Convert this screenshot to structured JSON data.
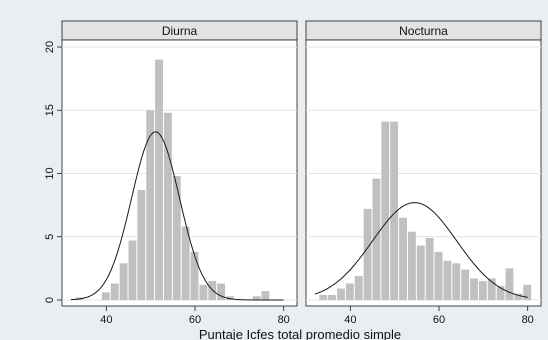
{
  "chart_data": {
    "type": "bar",
    "subtype": "histogram-with-normal-curve",
    "xlabel": "Puntaje Icfes total promedio simple",
    "ylabel": "",
    "xlim": [
      30,
      83
    ],
    "ylim": [
      0,
      21
    ],
    "xticks": [
      40,
      60,
      80
    ],
    "yticks": [
      0,
      5,
      10,
      15,
      20
    ],
    "bin_width": 2,
    "grid": true,
    "colors": {
      "bars": "#c0c0c0",
      "curve": "#1a1a1a",
      "panel_header": "#e3e3e3",
      "plot_bg": "#ffffff",
      "figure_bg": "#e9eef2"
    },
    "panels": [
      {
        "title": "Diurna",
        "bin_starts": [
          33,
          35,
          37,
          39,
          41,
          43,
          45,
          47,
          49,
          51,
          53,
          55,
          57,
          59,
          61,
          63,
          65,
          67,
          69,
          71,
          73,
          75,
          77
        ],
        "counts": [
          0.2,
          0,
          0,
          0.6,
          1.3,
          2.9,
          4.7,
          8.7,
          15.0,
          19.0,
          14.8,
          9.8,
          5.8,
          3.8,
          1.2,
          1.5,
          1.3,
          0.3,
          0,
          0,
          0.3,
          0.7,
          0
        ],
        "normal_curve": {
          "mean": 51.1,
          "sd": 5.4,
          "peak": 13.3
        }
      },
      {
        "title": "Nocturna",
        "bin_starts": [
          33,
          35,
          37,
          39,
          41,
          43,
          45,
          47,
          49,
          51,
          53,
          55,
          57,
          59,
          61,
          63,
          65,
          67,
          69,
          71,
          73,
          75,
          77,
          79
        ],
        "counts": [
          0.4,
          0.4,
          0.9,
          1.3,
          1.9,
          7.2,
          9.6,
          14.1,
          14.1,
          6.5,
          5.4,
          4.3,
          4.9,
          3.8,
          3.1,
          2.9,
          2.4,
          1.7,
          1.5,
          1.7,
          1.1,
          2.5,
          0.5,
          1.2
        ],
        "normal_curve": {
          "mean": 54.5,
          "sd": 9.5,
          "peak": 7.7
        }
      }
    ]
  }
}
